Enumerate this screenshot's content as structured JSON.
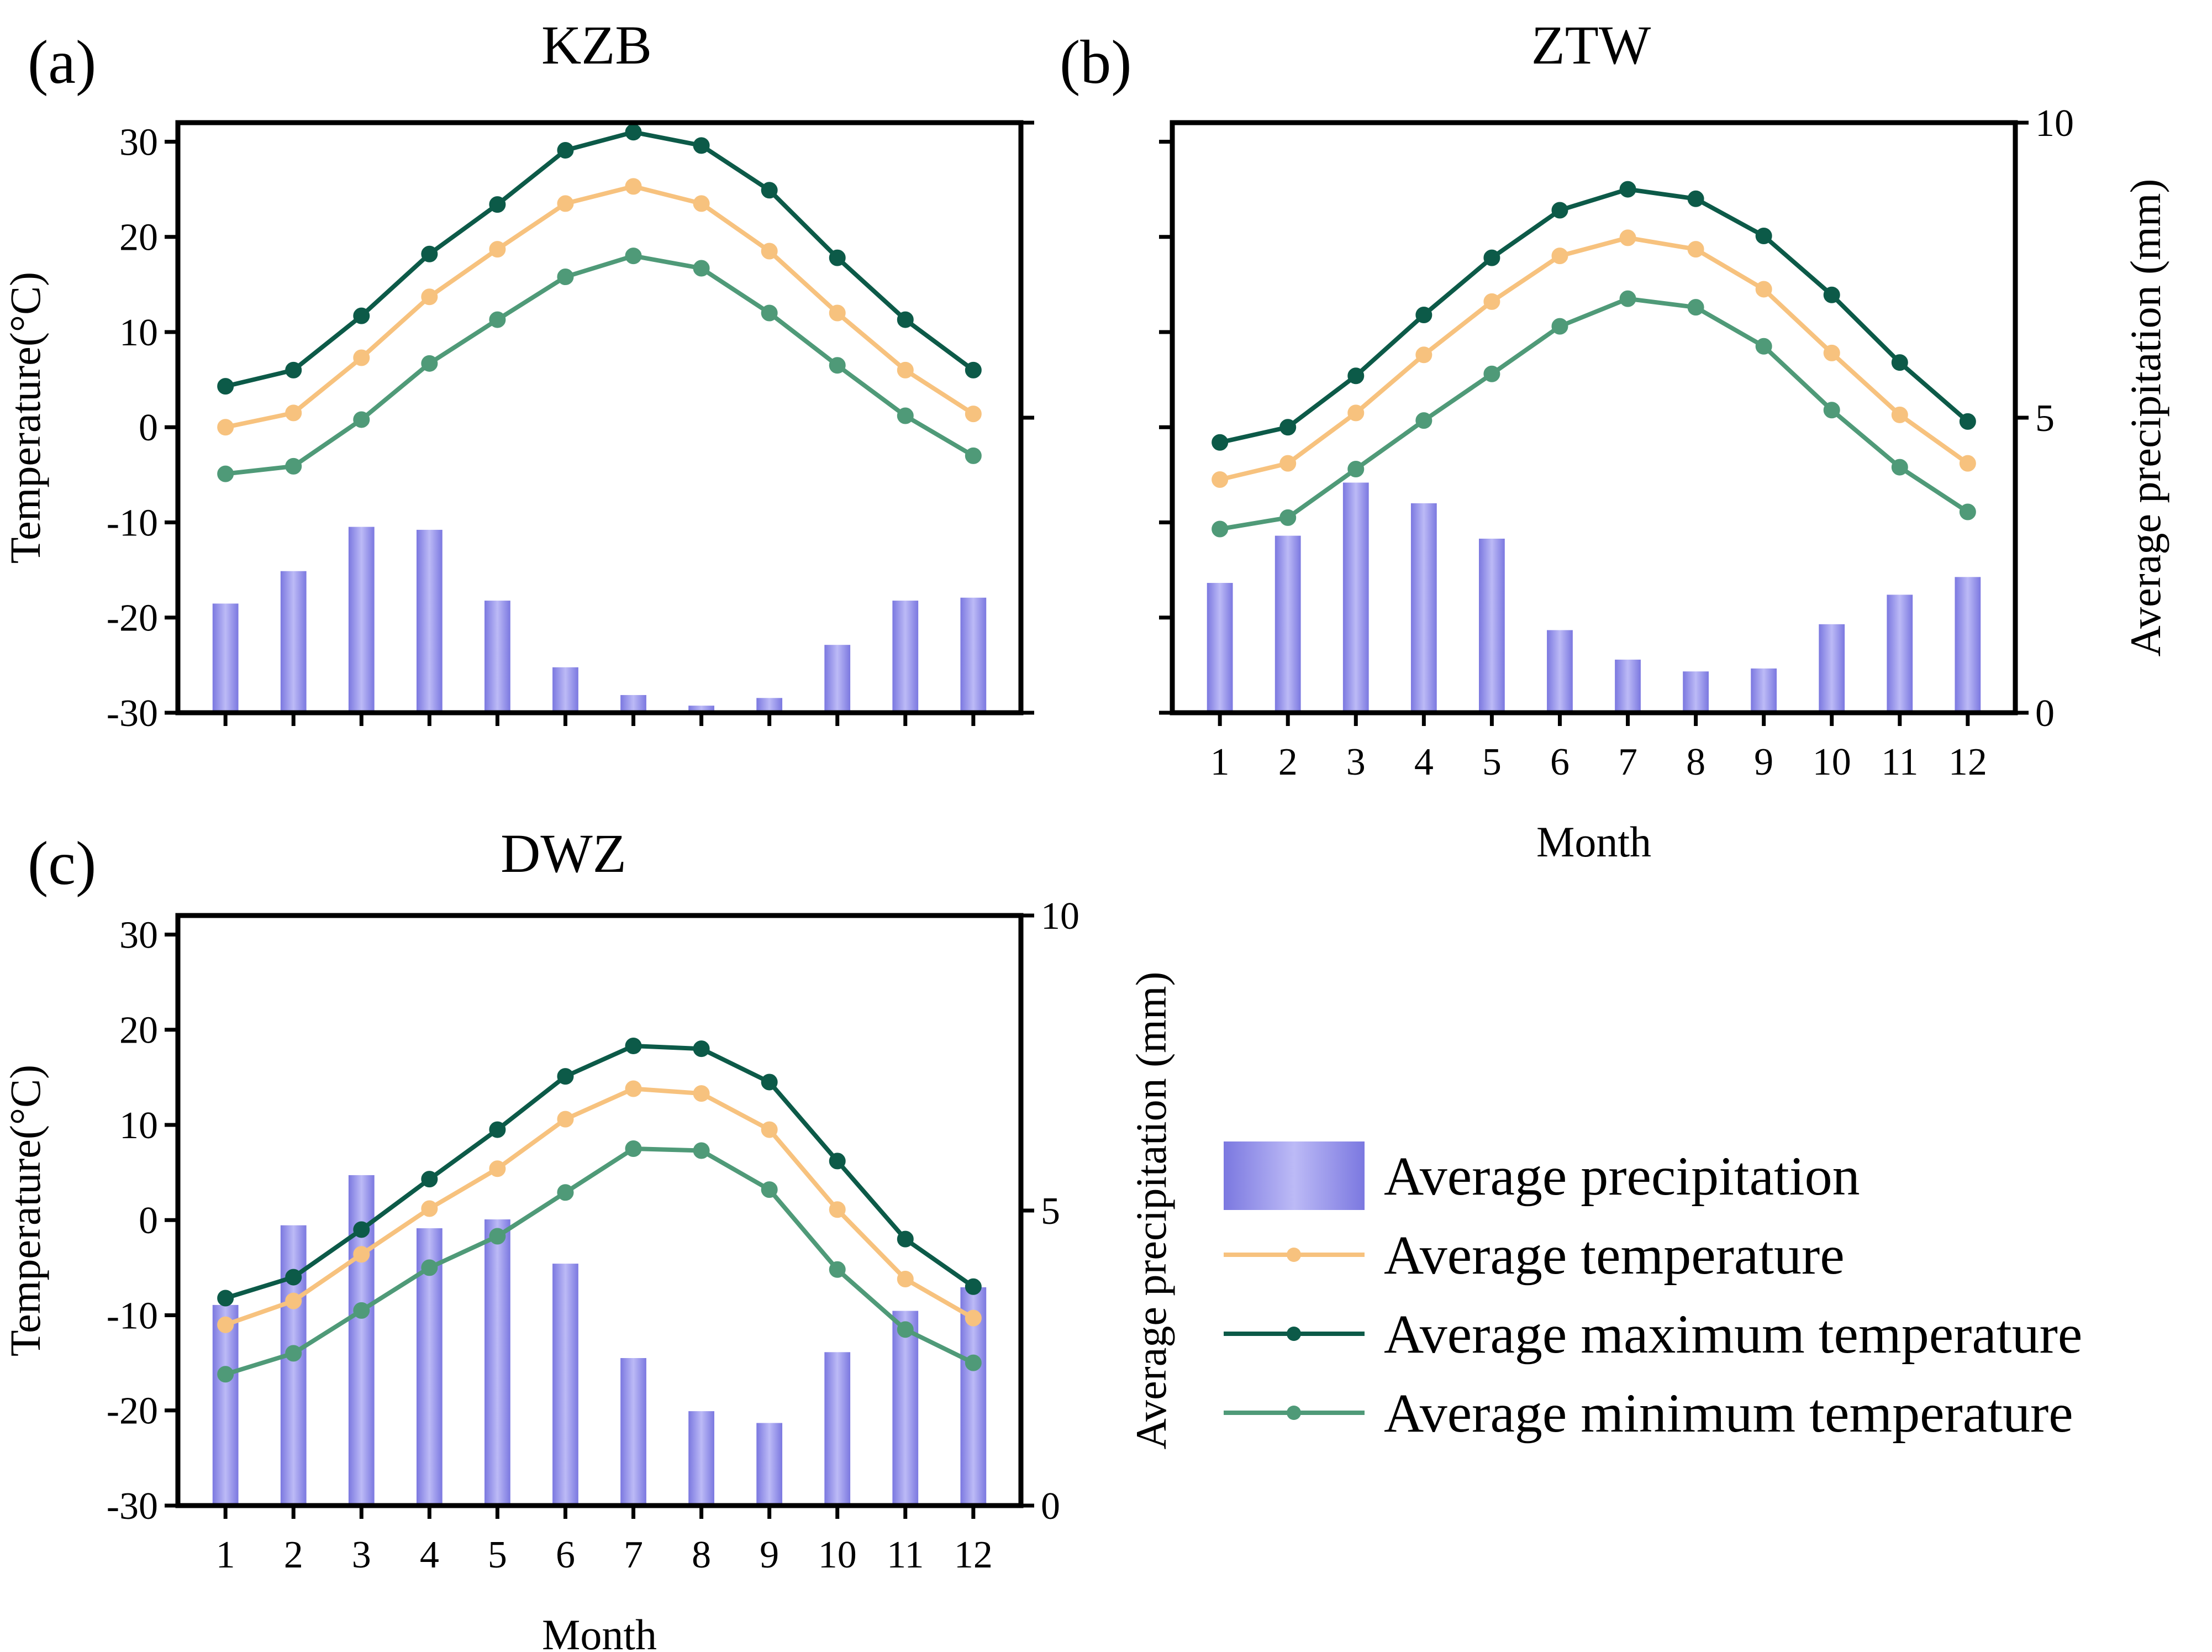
{
  "chart_data": [
    {
      "type": "bar+line",
      "panel_label": "(a)",
      "title": "KZB",
      "xlabel": "",
      "ylabel": "Temperature(°C)",
      "y2label": "",
      "categories": [
        "1",
        "2",
        "3",
        "4",
        "5",
        "6",
        "7",
        "8",
        "9",
        "10",
        "11",
        "12"
      ],
      "ylim": [
        -30,
        32
      ],
      "y2lim": [
        0,
        10
      ],
      "yticks": [
        -30,
        -20,
        -10,
        0,
        10,
        20,
        30
      ],
      "y2ticks": [
        0,
        5,
        10
      ],
      "show_xticklabels": false,
      "show_y2ticklabels": false,
      "series": [
        {
          "name": "Average precipitation",
          "kind": "bar",
          "axis": "y2",
          "values": [
            1.85,
            2.4,
            3.15,
            3.1,
            1.9,
            0.77,
            0.3,
            0.12,
            0.25,
            1.15,
            1.9,
            1.95
          ]
        },
        {
          "name": "Average temperature",
          "kind": "line",
          "axis": "y",
          "values": [
            0,
            1.5,
            7.3,
            13.7,
            18.7,
            23.5,
            25.3,
            23.5,
            18.5,
            12,
            6,
            1.4
          ]
        },
        {
          "name": "Average maximum temperature",
          "kind": "line",
          "axis": "y",
          "values": [
            4.3,
            6,
            11.7,
            18.2,
            23.4,
            29.1,
            31,
            29.6,
            24.9,
            17.8,
            11.3,
            6
          ]
        },
        {
          "name": "Average minimum temperature",
          "kind": "line",
          "axis": "y",
          "values": [
            -4.9,
            -4.1,
            0.8,
            6.7,
            11.3,
            15.8,
            18,
            16.7,
            12,
            6.5,
            1.2,
            -3
          ]
        }
      ]
    },
    {
      "type": "bar+line",
      "panel_label": "(b)",
      "title": "ZTW",
      "xlabel": "Month",
      "ylabel": "",
      "y2label": "Average precipitation (mm)",
      "categories": [
        "1",
        "2",
        "3",
        "4",
        "5",
        "6",
        "7",
        "8",
        "9",
        "10",
        "11",
        "12"
      ],
      "ylim": [
        -30,
        32
      ],
      "y2lim": [
        0,
        10
      ],
      "yticks": [
        -30,
        -20,
        -10,
        0,
        10,
        20,
        30
      ],
      "y2ticks": [
        0,
        5,
        10
      ],
      "show_xticklabels": true,
      "show_yticklabels": false,
      "series": [
        {
          "name": "Average precipitation",
          "kind": "bar",
          "axis": "y2",
          "values": [
            2.2,
            3.0,
            3.9,
            3.55,
            2.95,
            1.4,
            0.9,
            0.7,
            0.75,
            1.5,
            2.0,
            2.3
          ]
        },
        {
          "name": "Average temperature",
          "kind": "line",
          "axis": "y",
          "values": [
            -5.5,
            -3.8,
            1.5,
            7.6,
            13.2,
            18,
            19.9,
            18.7,
            14.5,
            7.8,
            1.3,
            -3.8
          ]
        },
        {
          "name": "Average maximum temperature",
          "kind": "line",
          "axis": "y",
          "values": [
            -1.6,
            0,
            5.4,
            11.8,
            17.8,
            22.8,
            25,
            24,
            20.1,
            13.9,
            6.8,
            0.6
          ]
        },
        {
          "name": "Average minimum temperature",
          "kind": "line",
          "axis": "y",
          "values": [
            -10.7,
            -9.5,
            -4.4,
            0.7,
            5.6,
            10.6,
            13.5,
            12.6,
            8.5,
            1.8,
            -4.2,
            -8.9
          ]
        }
      ]
    },
    {
      "type": "bar+line",
      "panel_label": "(c)",
      "title": "DWZ",
      "xlabel": "Month",
      "ylabel": "Temperature(°C)",
      "y2label": "Average precipitation (mm)",
      "categories": [
        "1",
        "2",
        "3",
        "4",
        "5",
        "6",
        "7",
        "8",
        "9",
        "10",
        "11",
        "12"
      ],
      "ylim": [
        -30,
        32
      ],
      "y2lim": [
        0,
        10
      ],
      "yticks": [
        -30,
        -20,
        -10,
        0,
        10,
        20,
        30
      ],
      "y2ticks": [
        0,
        5,
        10
      ],
      "show_xticklabels": true,
      "series": [
        {
          "name": "Average precipitation",
          "kind": "bar",
          "axis": "y2",
          "values": [
            3.4,
            4.75,
            5.6,
            4.7,
            4.85,
            4.1,
            2.5,
            1.6,
            1.4,
            2.6,
            3.3,
            3.7
          ]
        },
        {
          "name": "Average temperature",
          "kind": "line",
          "axis": "y",
          "values": [
            -11,
            -8.5,
            -3.6,
            1.2,
            5.4,
            10.6,
            13.8,
            13.3,
            9.5,
            1.1,
            -6.2,
            -10.3
          ]
        },
        {
          "name": "Average maximum temperature",
          "kind": "line",
          "axis": "y",
          "values": [
            -8.2,
            -6,
            -1,
            4.3,
            9.5,
            15.1,
            18.3,
            18,
            14.5,
            6.2,
            -2,
            -7
          ]
        },
        {
          "name": "Average minimum temperature",
          "kind": "line",
          "axis": "y",
          "values": [
            -16.2,
            -14,
            -9.5,
            -5,
            -1.7,
            2.9,
            7.5,
            7.3,
            3.2,
            -5.2,
            -11.5,
            -15
          ]
        }
      ]
    }
  ],
  "legend": {
    "items": [
      {
        "label": "Average precipitation",
        "kind": "bar"
      },
      {
        "label": "Average temperature",
        "kind": "line",
        "color": "#f7c27e"
      },
      {
        "label": "Average maximum temperature",
        "kind": "line",
        "color": "#0c5a48"
      },
      {
        "label": "Average minimum temperature",
        "kind": "line",
        "color": "#4f9a78"
      }
    ]
  },
  "colors": {
    "precipitation": "#7b78e0",
    "precipitation_light": "#bcbaf6",
    "avg_temp": "#f7c27e",
    "max_temp": "#0c5a48",
    "min_temp": "#4f9a78"
  }
}
